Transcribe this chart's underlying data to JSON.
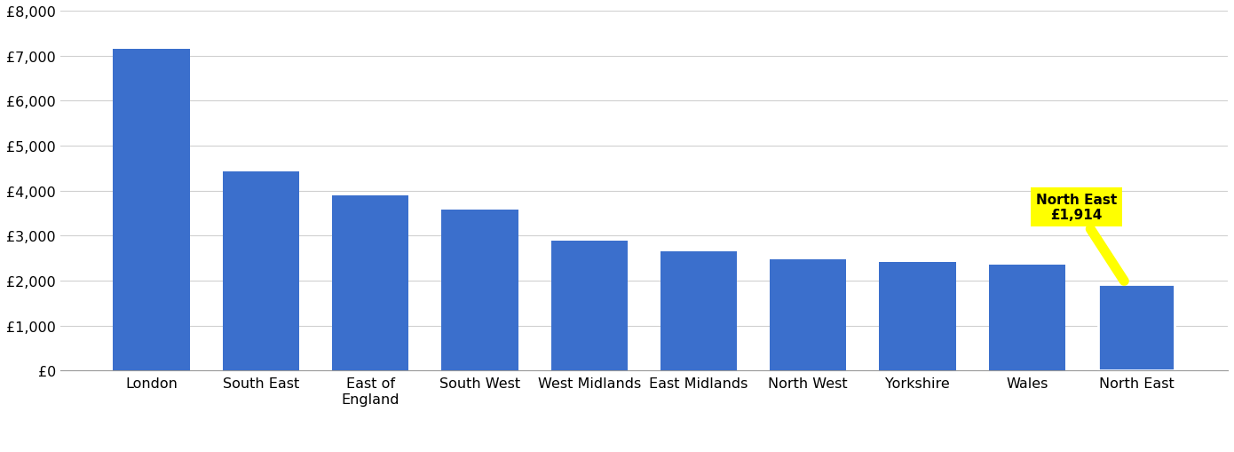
{
  "categories": [
    "London",
    "South East",
    "East of\nEngland",
    "South West",
    "West Midlands",
    "East Midlands",
    "North West",
    "Yorkshire",
    "Wales",
    "North East"
  ],
  "values": [
    7150,
    4430,
    3900,
    3580,
    2880,
    2640,
    2480,
    2410,
    2360,
    1914
  ],
  "bar_color": "#3B6FCC",
  "highlight_index": 9,
  "highlight_edge_color": "#ffffff",
  "annotation_text": "North East\n£1,914",
  "annotation_bg": "#ffff00",
  "ylim": [
    0,
    8000
  ],
  "yticks": [
    0,
    1000,
    2000,
    3000,
    4000,
    5000,
    6000,
    7000,
    8000
  ],
  "ytick_labels": [
    "£0",
    "£1,000",
    "£2,000",
    "£3,000",
    "£4,000",
    "£5,000",
    "£6,000",
    "£7,000",
    "£8,000"
  ],
  "grid_color": "#d0d0d0",
  "background_color": "#ffffff"
}
